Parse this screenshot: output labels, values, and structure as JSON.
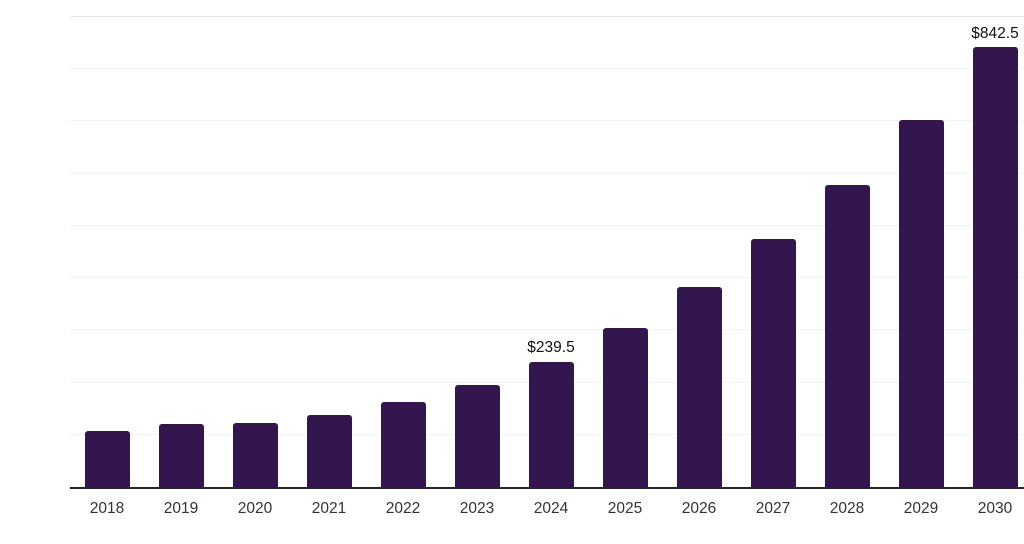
{
  "chart_data": {
    "type": "bar",
    "title": "",
    "categories": [
      "2018",
      "2019",
      "2020",
      "2021",
      "2022",
      "2023",
      "2024",
      "2025",
      "2026",
      "2027",
      "2028",
      "2029",
      "2030"
    ],
    "values": [
      107,
      121,
      123,
      137,
      162,
      195,
      239.5,
      305,
      383,
      474,
      579,
      702,
      842.5
    ],
    "data_labels": {
      "2024": "$239.5",
      "2030": "$842.5"
    },
    "value_prefix": "$",
    "xlabel": "",
    "ylabel": "",
    "ylim": [
      0,
      900
    ],
    "gridline_step": 100,
    "grid": true,
    "legend": "none",
    "y_axis_labels_visible": false
  },
  "colors": {
    "background": "#ffffff",
    "bar": "#331550",
    "axis_line": "#262626",
    "gridline": "#f3f3f3",
    "gridline_top": "#e9e9e9",
    "tick_label": "#333333",
    "data_label": "#111111"
  }
}
